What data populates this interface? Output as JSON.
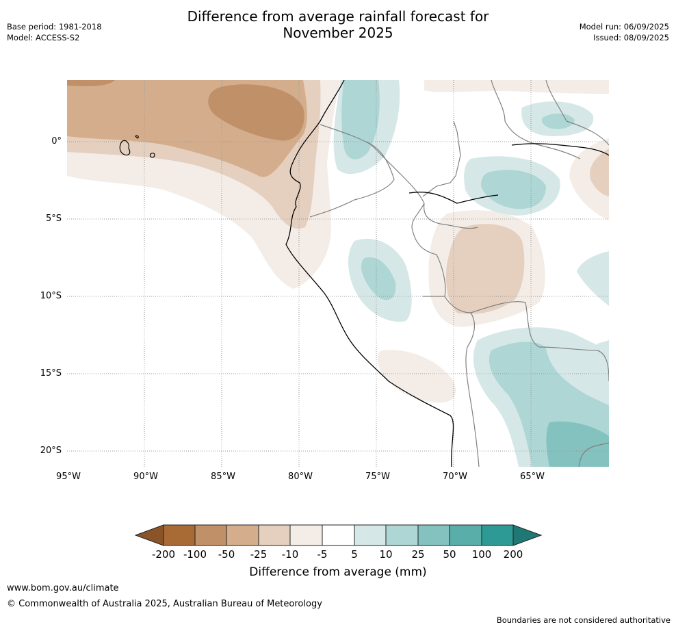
{
  "header": {
    "title_line1": "Difference from average rainfall forecast for",
    "title_line2": "November 2025",
    "base_period": "Base period: 1981-2018",
    "model": "Model: ACCESS-S2",
    "model_run": "Model run: 06/09/2025",
    "issued": "Issued: 08/09/2025"
  },
  "map": {
    "lat_labels": [
      "0°",
      "5°S",
      "10°S",
      "15°S",
      "20°S"
    ],
    "lon_labels": [
      "95°W",
      "90°W",
      "85°W",
      "80°W",
      "75°W",
      "70°W",
      "65°W"
    ],
    "colors": {
      "dry_200": "#a86b35",
      "dry_100": "#c09068",
      "dry_50": "#d4ae8c",
      "dry_25": "#e5d0bf",
      "dry_10": "#f4ede7",
      "neutral": "#ffffff",
      "wet_10": "#d5e8e7",
      "wet_25": "#add6d4",
      "wet_50": "#84c2bf",
      "wet_100": "#5aaeaa",
      "wet_200": "#2e9a95",
      "coast": "#000000",
      "border": "#808080",
      "grid": "#999999"
    }
  },
  "colorbar": {
    "ticks": [
      "-200",
      "-100",
      "-50",
      "-25",
      "-10",
      "-5",
      "5",
      "10",
      "25",
      "50",
      "100",
      "200"
    ],
    "label": "Difference from average (mm)"
  },
  "footer": {
    "url": "www.bom.gov.au/climate",
    "copyright": "© Commonwealth of Australia 2025, Australian Bureau of Meteorology",
    "note": "Boundaries are not considered authoritative"
  }
}
